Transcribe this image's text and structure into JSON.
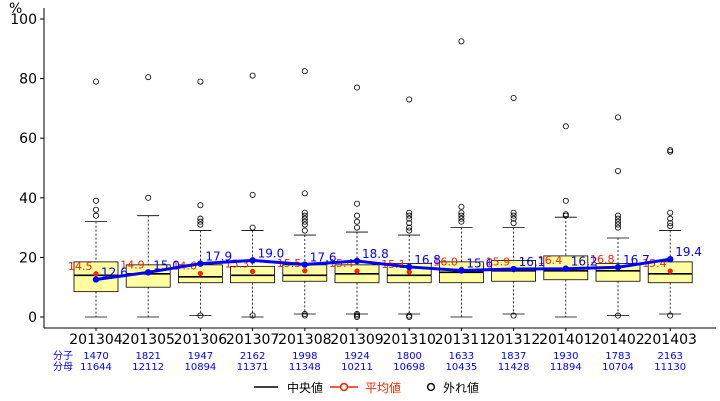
{
  "chart_data": {
    "type": "box",
    "unit": "%",
    "ylim": [
      0,
      100
    ],
    "yticks": [
      0,
      20,
      40,
      60,
      80,
      100
    ],
    "categories": [
      "201304",
      "201305",
      "201306",
      "201307",
      "201308",
      "201309",
      "201310",
      "201311",
      "201312",
      "201401",
      "201402",
      "201403"
    ],
    "boxes": [
      {
        "whisker_low": 0,
        "q1": 8.5,
        "median": 14,
        "q3": 18.5,
        "whisker_high": 32,
        "outliers": [
          34,
          36,
          39,
          79
        ]
      },
      {
        "whisker_low": 0,
        "q1": 10,
        "median": 14.5,
        "q3": 17.5,
        "whisker_high": 34,
        "outliers": [
          40,
          80.5
        ]
      },
      {
        "whisker_low": 0.5,
        "q1": 11.5,
        "median": 13.5,
        "q3": 17.5,
        "whisker_high": 29,
        "outliers": [
          0.5,
          31,
          32,
          33,
          37.5,
          79
        ]
      },
      {
        "whisker_low": 0,
        "q1": 11.5,
        "median": 14,
        "q3": 17,
        "whisker_high": 29,
        "outliers": [
          0.5,
          30,
          41,
          81
        ]
      },
      {
        "whisker_low": 1,
        "q1": 12,
        "median": 14,
        "q3": 17.5,
        "whisker_high": 27.5,
        "outliers": [
          0.5,
          1,
          29,
          31,
          32,
          33,
          34,
          35,
          41.5,
          82.5
        ]
      },
      {
        "whisker_low": 1,
        "q1": 11.5,
        "median": 14.5,
        "q3": 17.5,
        "whisker_high": 28.5,
        "outliers": [
          0,
          0.5,
          1,
          30,
          32,
          34,
          38,
          77
        ]
      },
      {
        "whisker_low": 1,
        "q1": 11.5,
        "median": 14,
        "q3": 18,
        "whisker_high": 27.5,
        "outliers": [
          0,
          0.5,
          29,
          30,
          31.5,
          33,
          34,
          35,
          73
        ]
      },
      {
        "whisker_low": 0,
        "q1": 11.5,
        "median": 15,
        "q3": 18.5,
        "whisker_high": 30,
        "outliers": [
          32,
          33,
          34,
          35,
          37,
          92.5
        ]
      },
      {
        "whisker_low": 1,
        "q1": 12,
        "median": 15.5,
        "q3": 19,
        "whisker_high": 30,
        "outliers": [
          0.5,
          31.5,
          33,
          34,
          35,
          73.5
        ]
      },
      {
        "whisker_low": 0,
        "q1": 12.5,
        "median": 15.5,
        "q3": 20.5,
        "whisker_high": 33.5,
        "outliers": [
          34,
          34.5,
          39,
          64
        ]
      },
      {
        "whisker_low": 0.5,
        "q1": 12,
        "median": 15.5,
        "q3": 18,
        "whisker_high": 26.5,
        "outliers": [
          0.5,
          30,
          31,
          32,
          33,
          34,
          49,
          67
        ]
      },
      {
        "whisker_low": 1,
        "q1": 11.5,
        "median": 14.5,
        "q3": 18.5,
        "whisker_high": 29,
        "outliers": [
          0.5,
          30.5,
          31.5,
          33,
          35,
          55.5,
          56
        ]
      }
    ],
    "means": [
      14.5,
      14.9,
      14.6,
      15.3,
      15.5,
      15.4,
      15.1,
      16.0,
      15.9,
      16.4,
      16.8,
      15.4
    ],
    "mean_labels": [
      "14.5",
      "14.9",
      "14.6",
      "15.3",
      "15.5",
      "15.4",
      "15.1",
      "16.0",
      "15.9",
      "16.4",
      "16.8",
      "15.4"
    ],
    "overall": [
      12.6,
      15.0,
      17.9,
      19.0,
      17.6,
      18.8,
      16.8,
      15.6,
      16.1,
      16.2,
      16.7,
      19.4
    ],
    "overall_labels": [
      "12.6",
      "15.0",
      "17.9",
      "19.0",
      "17.6",
      "18.8",
      "16.8",
      "15.6",
      "16.1",
      "16.2",
      "16.7",
      "19.4"
    ],
    "numerator_label": "分子",
    "denominator_label": "分母",
    "numerators": [
      "1470",
      "1821",
      "1947",
      "2162",
      "1998",
      "1924",
      "1800",
      "1633",
      "1837",
      "1930",
      "1783",
      "2163"
    ],
    "denominators": [
      "11644",
      "12112",
      "10894",
      "11371",
      "11348",
      "10211",
      "10698",
      "10435",
      "11428",
      "11894",
      "10704",
      "11130"
    ],
    "legend": {
      "median": "中央値",
      "mean": "平均値",
      "outlier": "外れ値",
      "position": "bottom"
    },
    "colors": {
      "box_fill": "#ffffa0",
      "overall_line": "#0000ff",
      "mean": "#ff2200",
      "counts": "#0000ff"
    }
  }
}
